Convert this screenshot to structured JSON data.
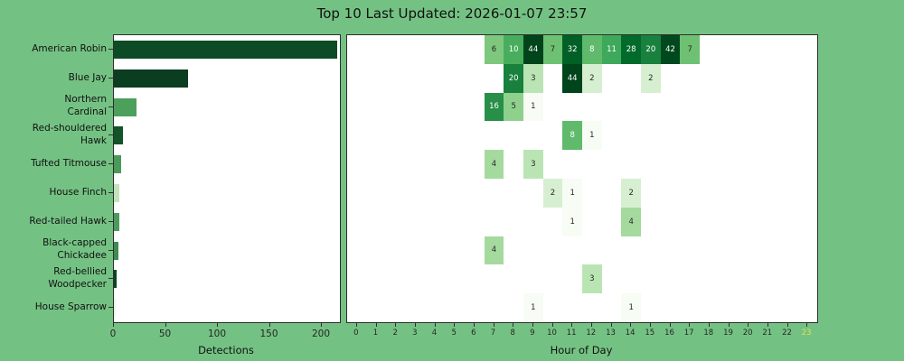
{
  "title": "Top 10 Last Updated: 2026-01-07 23:57",
  "colors": {
    "figure_bg": "#74c283",
    "plot_bg": "#ffffff",
    "grid": "#7a7a7a",
    "spine": "#2e2e2e",
    "text": "#111111",
    "tick_text": "#262626",
    "current_hour_text": "#dce24b",
    "cell_text_dark": "#262626",
    "cell_text_light": "#ffffff"
  },
  "chart_data": [
    {
      "type": "bar",
      "orientation": "horizontal",
      "xlabel": "Detections",
      "xticks": [
        0,
        50,
        100,
        150,
        200
      ],
      "xlim": [
        0,
        217.4
      ],
      "grid": false,
      "categories": [
        "American Robin",
        "Blue Jay",
        "Northern Cardinal",
        "Red-shouldered Hawk",
        "Tufted Titmouse",
        "House Finch",
        "Red-tailed Hawk",
        "Black-capped Chickadee",
        "Red-bellied Woodpecker",
        "House Sparrow"
      ],
      "category_lines": [
        [
          "American Robin"
        ],
        [
          "Blue Jay"
        ],
        [
          "Northern",
          "Cardinal"
        ],
        [
          "Red-shouldered",
          "Hawk"
        ],
        [
          "Tufted Titmouse"
        ],
        [
          "House Finch"
        ],
        [
          "Red-tailed Hawk"
        ],
        [
          "Black-capped",
          "Chickadee"
        ],
        [
          "Red-bellied",
          "Woodpecker"
        ],
        [
          "House Sparrow"
        ]
      ],
      "values": [
        215,
        71,
        22,
        9,
        7,
        5,
        5,
        4,
        3,
        2
      ],
      "bar_colors": [
        "#0d4b26",
        "#0b3d20",
        "#4ca05b",
        "#145229",
        "#4a9a58",
        "#c4e3bc",
        "#4c9b5e",
        "#3f8a51",
        "#0c4524",
        "#e7f6e3"
      ]
    },
    {
      "type": "heatmap",
      "xlabel": "Hour of Day",
      "x": [
        0,
        1,
        2,
        3,
        4,
        5,
        6,
        7,
        8,
        9,
        10,
        11,
        12,
        13,
        14,
        15,
        16,
        17,
        18,
        19,
        20,
        21,
        22,
        23
      ],
      "highlighted_hour": 23,
      "categories": [
        "American Robin",
        "Blue Jay",
        "Northern Cardinal",
        "Red-shouldered Hawk",
        "Tufted Titmouse",
        "House Finch",
        "Red-tailed Hawk",
        "Black-capped Chickadee",
        "Red-bellied Woodpecker",
        "House Sparrow"
      ],
      "cells": [
        {
          "row": 0,
          "hour": 7,
          "value": 6
        },
        {
          "row": 0,
          "hour": 8,
          "value": 10
        },
        {
          "row": 0,
          "hour": 9,
          "value": 44
        },
        {
          "row": 0,
          "hour": 10,
          "value": 7
        },
        {
          "row": 0,
          "hour": 11,
          "value": 32
        },
        {
          "row": 0,
          "hour": 12,
          "value": 8
        },
        {
          "row": 0,
          "hour": 13,
          "value": 11
        },
        {
          "row": 0,
          "hour": 14,
          "value": 28
        },
        {
          "row": 0,
          "hour": 15,
          "value": 20
        },
        {
          "row": 0,
          "hour": 16,
          "value": 42
        },
        {
          "row": 0,
          "hour": 17,
          "value": 7
        },
        {
          "row": 1,
          "hour": 8,
          "value": 20
        },
        {
          "row": 1,
          "hour": 9,
          "value": 3
        },
        {
          "row": 1,
          "hour": 11,
          "value": 44
        },
        {
          "row": 1,
          "hour": 12,
          "value": 2
        },
        {
          "row": 1,
          "hour": 15,
          "value": 2
        },
        {
          "row": 2,
          "hour": 7,
          "value": 16
        },
        {
          "row": 2,
          "hour": 8,
          "value": 5
        },
        {
          "row": 2,
          "hour": 9,
          "value": 1
        },
        {
          "row": 3,
          "hour": 11,
          "value": 8
        },
        {
          "row": 3,
          "hour": 12,
          "value": 1
        },
        {
          "row": 4,
          "hour": 7,
          "value": 4
        },
        {
          "row": 4,
          "hour": 9,
          "value": 3
        },
        {
          "row": 5,
          "hour": 10,
          "value": 2
        },
        {
          "row": 5,
          "hour": 11,
          "value": 1
        },
        {
          "row": 5,
          "hour": 14,
          "value": 2
        },
        {
          "row": 6,
          "hour": 11,
          "value": 1
        },
        {
          "row": 6,
          "hour": 14,
          "value": 4
        },
        {
          "row": 7,
          "hour": 7,
          "value": 4
        },
        {
          "row": 8,
          "hour": 12,
          "value": 3
        },
        {
          "row": 9,
          "hour": 9,
          "value": 1
        },
        {
          "row": 9,
          "hour": 14,
          "value": 1
        }
      ],
      "value_colors": {
        "1": "#f7fcf5",
        "2": "#d7efd1",
        "3": "#bbe4b4",
        "4": "#a4da9e",
        "5": "#8fd18c",
        "6": "#7dc87e",
        "7": "#6ec173",
        "8": "#60ba6b",
        "10": "#48ae5d",
        "11": "#3fa95b",
        "16": "#278f48",
        "20": "#17813d",
        "28": "#006b2b",
        "32": "#006026",
        "42": "#00481d",
        "44": "#00441b"
      },
      "light_text_min": 8
    }
  ]
}
